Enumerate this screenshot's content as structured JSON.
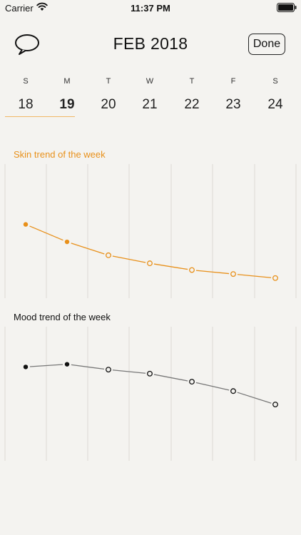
{
  "status_bar": {
    "carrier": "Carrier",
    "time": "11:37 PM"
  },
  "header": {
    "title": "FEB 2018",
    "done_label": "Done",
    "chat_icon": "speech-bubble-icon"
  },
  "week": {
    "days": [
      {
        "letter": "S",
        "date": "18"
      },
      {
        "letter": "M",
        "date": "19"
      },
      {
        "letter": "T",
        "date": "20"
      },
      {
        "letter": "W",
        "date": "21"
      },
      {
        "letter": "T",
        "date": "22"
      },
      {
        "letter": "F",
        "date": "23"
      },
      {
        "letter": "S",
        "date": "24"
      }
    ],
    "selected_date": "19"
  },
  "charts": {
    "skin": {
      "title": "Skin trend of the week",
      "color": "#e8901a"
    },
    "mood": {
      "title": "Mood trend of the week",
      "color": "#111111"
    }
  },
  "chart_data": [
    {
      "type": "line",
      "title": "Skin trend of the week",
      "x": [
        "18",
        "19",
        "20",
        "21",
        "22",
        "23",
        "24"
      ],
      "series": [
        {
          "values": [
            0.55,
            0.42,
            0.32,
            0.26,
            0.21,
            0.18,
            0.15
          ],
          "filled": [
            true,
            true,
            false,
            false,
            false,
            false,
            false
          ]
        }
      ],
      "ylim": [
        0,
        1
      ],
      "grid": "vertical"
    },
    {
      "type": "line",
      "title": "Mood trend of the week",
      "x": [
        "18",
        "19",
        "20",
        "21",
        "22",
        "23",
        "24"
      ],
      "series": [
        {
          "values": [
            0.7,
            0.72,
            0.68,
            0.65,
            0.59,
            0.52,
            0.42
          ],
          "filled": [
            true,
            true,
            false,
            false,
            false,
            false,
            false
          ]
        }
      ],
      "ylim": [
        0,
        1
      ],
      "grid": "vertical"
    }
  ]
}
